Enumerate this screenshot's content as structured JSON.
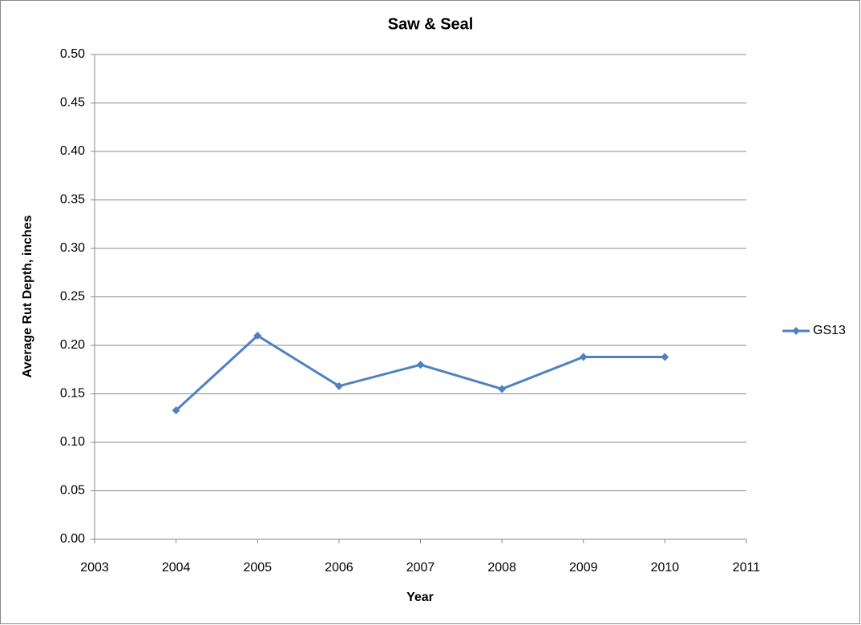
{
  "chart_data": {
    "type": "line",
    "title": "Saw & Seal",
    "x_label": "Year",
    "y_label": "Average Rut Depth, inches",
    "x": [
      2004,
      2005,
      2006,
      2007,
      2008,
      2009,
      2010
    ],
    "series": [
      {
        "name": "GS13",
        "color": "#4f81bd",
        "values": [
          0.133,
          0.21,
          0.158,
          0.18,
          0.155,
          0.188,
          0.188
        ]
      }
    ],
    "xlim": [
      2003,
      2011
    ],
    "xticks": [
      2003,
      2004,
      2005,
      2006,
      2007,
      2008,
      2009,
      2010,
      2011
    ],
    "ylim": [
      0,
      0.5
    ],
    "yticks": [
      {
        "value": 0,
        "label": "0.00"
      },
      0.05,
      {
        "value": 0.1,
        "label": "0.10"
      },
      0.15,
      {
        "value": 0.2,
        "label": "0.20"
      },
      0.25,
      {
        "value": 0.3,
        "label": "0.30"
      },
      0.35,
      {
        "value": 0.4,
        "label": "0.40"
      },
      0.45,
      {
        "value": 0.5,
        "label": "0.50"
      }
    ],
    "grid": true,
    "legend": "right"
  }
}
